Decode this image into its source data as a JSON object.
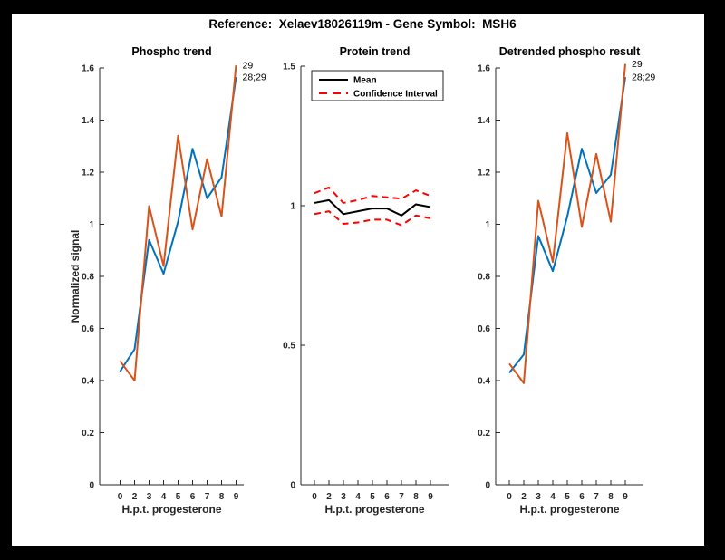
{
  "figure": {
    "title": "Reference:  Xelaev18026119m - Gene Symbol:  MSH6"
  },
  "palette": {
    "blue": "#0072BD",
    "orange": "#D95319",
    "red": "#FF0000",
    "black": "#000000",
    "axis": "#262626",
    "background": "#FFFFFF",
    "frame": "#000000"
  },
  "chart_data": [
    {
      "type": "line",
      "title": "Phospho trend",
      "xlabel": "H.p.t. progesterone",
      "ylabel": "Normalized signal",
      "categories": [
        "0",
        "2",
        "3",
        "4",
        "5",
        "6",
        "7",
        "8",
        "9"
      ],
      "ylim": [
        0,
        1.6
      ],
      "yticks": [
        "0",
        "0.2",
        "0.4",
        "0.6",
        "0.8",
        "1",
        "1.2",
        "1.4",
        "1.6"
      ],
      "grid": false,
      "series": [
        {
          "name": "28;29",
          "color": "blue",
          "dash": false,
          "values": [
            0.435,
            0.52,
            0.94,
            0.81,
            1.01,
            1.29,
            1.1,
            1.18,
            1.565
          ]
        },
        {
          "name": "29",
          "color": "orange",
          "dash": false,
          "values": [
            0.475,
            0.4,
            1.07,
            0.84,
            1.34,
            0.98,
            1.25,
            1.03,
            1.61
          ]
        }
      ],
      "annotations": [
        {
          "text": "29",
          "series": 1
        },
        {
          "text": "28;29",
          "series": 0
        }
      ]
    },
    {
      "type": "line",
      "title": "Protein trend",
      "xlabel": "H.p.t. progesterone",
      "ylabel": "",
      "categories": [
        "0",
        "2",
        "3",
        "4",
        "5",
        "6",
        "7",
        "8",
        "9"
      ],
      "ylim": [
        0,
        1.5
      ],
      "yticks": [
        "0",
        "0.5",
        "1",
        "1.5"
      ],
      "grid": false,
      "series": [
        {
          "name": "Mean",
          "color": "black",
          "dash": false,
          "values": [
            1.01,
            1.02,
            0.97,
            0.98,
            0.99,
            0.99,
            0.965,
            1.005,
            0.995
          ]
        },
        {
          "name": "Confidence Interval upper",
          "color": "red",
          "dash": true,
          "values": [
            1.045,
            1.065,
            1.01,
            1.02,
            1.035,
            1.03,
            1.025,
            1.055,
            1.035
          ]
        },
        {
          "name": "Confidence Interval lower",
          "color": "red",
          "dash": true,
          "values": [
            0.97,
            0.98,
            0.935,
            0.94,
            0.95,
            0.95,
            0.93,
            0.965,
            0.955
          ]
        }
      ],
      "legend": {
        "position": "north",
        "items": [
          {
            "label": "Mean",
            "color": "black",
            "dash": false
          },
          {
            "label": "Confidence Interval",
            "color": "red",
            "dash": true
          }
        ]
      },
      "annotations": []
    },
    {
      "type": "line",
      "title": "Detrended phospho result",
      "xlabel": "H.p.t. progesterone",
      "ylabel": "",
      "categories": [
        "0",
        "2",
        "3",
        "4",
        "5",
        "6",
        "7",
        "8",
        "9"
      ],
      "ylim": [
        0,
        1.6
      ],
      "yticks": [
        "0",
        "0.2",
        "0.4",
        "0.6",
        "0.8",
        "1",
        "1.2",
        "1.4",
        "1.6"
      ],
      "grid": false,
      "series": [
        {
          "name": "28;29",
          "color": "blue",
          "dash": false,
          "values": [
            0.43,
            0.5,
            0.955,
            0.82,
            1.03,
            1.29,
            1.12,
            1.19,
            1.565
          ]
        },
        {
          "name": "29",
          "color": "orange",
          "dash": false,
          "values": [
            0.465,
            0.39,
            1.09,
            0.855,
            1.35,
            0.99,
            1.27,
            1.01,
            1.615
          ]
        }
      ],
      "annotations": [
        {
          "text": "29",
          "series": 1
        },
        {
          "text": "28;29",
          "series": 0
        }
      ]
    }
  ]
}
